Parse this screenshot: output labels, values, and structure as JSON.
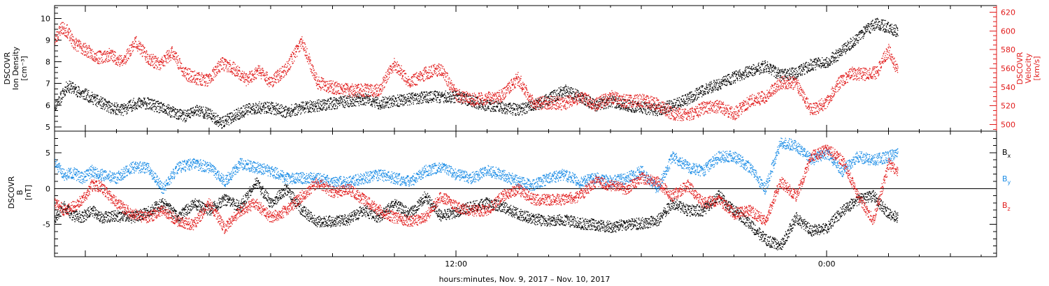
{
  "colors": {
    "black": "#000000",
    "red": "#e11a1a",
    "blue": "#1a8ce6"
  },
  "xlabel": "hours:minutes, Nov.  9, 2017 – Nov. 10, 2017",
  "chart_data": [
    {
      "type": "scatter",
      "panel": "top",
      "ylabel_left": [
        "DSCOVR",
        "Ion Density",
        "[cm⁻³]"
      ],
      "ylabel_right": [
        "DSCOVR",
        "Velocity",
        "[km/s]"
      ],
      "xlim_hours": [
        -1.0,
        29.5
      ],
      "x_ticks": [
        {
          "h": 12,
          "label": "12:00"
        },
        {
          "h": 24,
          "label": "0:00"
        }
      ],
      "ylim_left": [
        4.8,
        10.6
      ],
      "yticks_left": [
        5,
        6,
        7,
        8,
        9,
        10
      ],
      "ylim_right": [
        493,
        627
      ],
      "yticks_right": [
        500,
        520,
        540,
        560,
        580,
        600,
        620
      ],
      "series": [
        {
          "name": "Ion Density",
          "axis": "left",
          "color": "#000000",
          "x_hours": [
            -1.0,
            -0.8,
            -0.6,
            -0.4,
            -0.2,
            0.0,
            0.4,
            0.8,
            1.2,
            1.6,
            2.0,
            2.4,
            2.8,
            3.2,
            3.6,
            4.0,
            4.4,
            4.8,
            5.2,
            5.6,
            6.0,
            6.5,
            7.0,
            7.5,
            8.0,
            8.5,
            9.0,
            9.5,
            10.0,
            10.5,
            11.0,
            11.5,
            12.0,
            12.5,
            13.0,
            13.5,
            14.0,
            14.5,
            15.0,
            15.5,
            16.0,
            16.5,
            17.0,
            17.5,
            18.0,
            18.5,
            19.0,
            19.5,
            20.0,
            20.5,
            21.0,
            21.5,
            22.0,
            22.5,
            23.0,
            23.5,
            24.0,
            24.4,
            24.8,
            25.2,
            25.6,
            26.0,
            26.3
          ],
          "values": [
            6.0,
            6.4,
            6.9,
            6.8,
            6.6,
            6.5,
            6.2,
            5.9,
            5.8,
            6.1,
            6.1,
            5.9,
            5.7,
            5.5,
            5.8,
            5.6,
            5.2,
            5.5,
            5.8,
            5.9,
            5.9,
            5.7,
            5.9,
            6.0,
            6.1,
            6.2,
            6.3,
            6.1,
            6.2,
            6.3,
            6.4,
            6.4,
            6.4,
            6.2,
            6.0,
            5.9,
            5.8,
            6.0,
            6.3,
            6.7,
            6.4,
            6.0,
            6.2,
            6.0,
            5.9,
            5.8,
            6.0,
            6.3,
            6.7,
            7.0,
            7.3,
            7.6,
            7.8,
            7.4,
            7.5,
            7.9,
            8.0,
            8.4,
            8.9,
            9.4,
            9.8,
            9.6,
            9.4
          ]
        },
        {
          "name": "Velocity",
          "axis": "right",
          "color": "#e11a1a",
          "x_hours": [
            -1.0,
            -0.8,
            -0.6,
            -0.4,
            -0.2,
            0.0,
            0.4,
            0.8,
            1.2,
            1.6,
            2.0,
            2.4,
            2.8,
            3.2,
            3.6,
            4.0,
            4.4,
            4.8,
            5.2,
            5.6,
            6.0,
            6.5,
            7.0,
            7.5,
            8.0,
            8.5,
            9.0,
            9.5,
            10.0,
            10.5,
            11.0,
            11.5,
            12.0,
            12.5,
            13.0,
            13.5,
            14.0,
            14.5,
            15.0,
            15.5,
            16.0,
            16.5,
            17.0,
            17.5,
            18.0,
            18.5,
            19.0,
            19.5,
            20.0,
            20.5,
            21.0,
            21.5,
            22.0,
            22.5,
            23.0,
            23.5,
            24.0,
            24.4,
            24.8,
            25.2,
            25.6,
            26.0,
            26.3
          ],
          "values": [
            590,
            604,
            600,
            588,
            584,
            580,
            572,
            575,
            567,
            589,
            572,
            564,
            578,
            555,
            550,
            548,
            566,
            560,
            548,
            558,
            546,
            560,
            590,
            545,
            540,
            537,
            537,
            537,
            565,
            545,
            555,
            560,
            532,
            527,
            528,
            532,
            550,
            523,
            524,
            523,
            530,
            522,
            530,
            525,
            526,
            522,
            512,
            510,
            518,
            520,
            512,
            525,
            530,
            545,
            545,
            515,
            525,
            545,
            555,
            554,
            556,
            580,
            556
          ]
        }
      ]
    },
    {
      "type": "scatter",
      "panel": "bottom",
      "ylabel_left": [
        "DSCOVR",
        "B",
        "[nT]"
      ],
      "xlim_hours": [
        -1.0,
        29.5
      ],
      "x_ticks": [
        {
          "h": 12,
          "label": "12:00"
        },
        {
          "h": 24,
          "label": "0:00"
        }
      ],
      "ylim": [
        -9.5,
        8.0
      ],
      "yticks": [
        -5,
        0,
        5
      ],
      "zero_line": true,
      "legend": [
        {
          "text": "B",
          "sub": "x",
          "color": "#000000"
        },
        {
          "text": "B",
          "sub": "y",
          "color": "#1a8ce6"
        },
        {
          "text": "B",
          "sub": "z",
          "color": "#e11a1a"
        }
      ],
      "series": [
        {
          "name": "Bx",
          "color": "#000000",
          "x_hours": [
            -1.0,
            -0.7,
            -0.4,
            -0.1,
            0.2,
            0.5,
            1.0,
            1.5,
            2.0,
            2.5,
            3.0,
            3.5,
            4.0,
            4.5,
            5.0,
            5.5,
            6.0,
            6.5,
            7.0,
            7.5,
            8.0,
            8.5,
            9.0,
            9.5,
            10.0,
            10.5,
            11.0,
            11.5,
            12.0,
            12.5,
            13.0,
            13.5,
            14.0,
            14.5,
            15.0,
            15.5,
            16.0,
            16.5,
            17.0,
            17.5,
            18.0,
            18.5,
            19.0,
            19.5,
            20.0,
            20.5,
            21.0,
            21.5,
            22.0,
            22.5,
            23.0,
            23.5,
            24.0,
            24.5,
            25.0,
            25.5,
            26.0,
            26.3
          ],
          "values": [
            -4.0,
            -2.5,
            -3.8,
            -3.9,
            -3.0,
            -4.0,
            -3.8,
            -4.0,
            -3.2,
            -2.0,
            -4.0,
            -2.0,
            -3.0,
            -1.5,
            -2.5,
            1.0,
            -2.0,
            0.0,
            -3.0,
            -4.5,
            -4.5,
            -4.3,
            -3.0,
            -4.0,
            -2.0,
            -3.5,
            -1.0,
            -3.8,
            -3.2,
            -2.5,
            -2.0,
            -2.5,
            -3.5,
            -4.2,
            -4.5,
            -4.3,
            -4.8,
            -5.0,
            -5.3,
            -5.0,
            -4.8,
            -4.5,
            -2.0,
            -3.0,
            -3.0,
            -1.0,
            -3.0,
            -5.0,
            -7.0,
            -8.0,
            -4.0,
            -5.8,
            -5.5,
            -3.0,
            -1.5,
            -1.0,
            -3.5,
            -4.0
          ]
        },
        {
          "name": "By",
          "color": "#1a8ce6",
          "x_hours": [
            -1.0,
            -0.7,
            -0.4,
            -0.1,
            0.2,
            0.5,
            1.0,
            1.5,
            2.0,
            2.5,
            3.0,
            3.5,
            4.0,
            4.5,
            5.0,
            5.5,
            6.0,
            6.5,
            7.0,
            7.5,
            8.0,
            8.5,
            9.0,
            9.5,
            10.0,
            10.5,
            11.0,
            11.5,
            12.0,
            12.5,
            13.0,
            13.5,
            14.0,
            14.5,
            15.0,
            15.5,
            16.0,
            16.5,
            17.0,
            17.5,
            18.0,
            18.5,
            19.0,
            19.5,
            20.0,
            20.5,
            21.0,
            21.5,
            22.0,
            22.5,
            23.0,
            23.5,
            24.0,
            24.5,
            25.0,
            25.5,
            26.0,
            26.3
          ],
          "values": [
            3.5,
            2.0,
            2.2,
            1.5,
            2.5,
            2.0,
            1.5,
            3.0,
            3.0,
            0.0,
            3.0,
            3.5,
            3.0,
            1.0,
            3.5,
            3.0,
            2.5,
            1.5,
            1.5,
            1.5,
            1.0,
            1.0,
            1.5,
            2.0,
            1.5,
            1.0,
            2.5,
            3.0,
            2.0,
            1.5,
            2.5,
            2.0,
            1.0,
            0.5,
            1.5,
            2.0,
            1.0,
            1.5,
            1.0,
            1.5,
            2.5,
            0.0,
            4.5,
            3.0,
            2.5,
            4.5,
            4.5,
            3.0,
            0.0,
            6.5,
            6.0,
            4.0,
            5.0,
            2.5,
            4.5,
            4.0,
            4.5,
            5.0
          ]
        },
        {
          "name": "Bz",
          "color": "#e11a1a",
          "x_hours": [
            -1.0,
            -0.7,
            -0.4,
            -0.1,
            0.2,
            0.5,
            1.0,
            1.5,
            2.0,
            2.5,
            3.0,
            3.5,
            4.0,
            4.5,
            5.0,
            5.5,
            6.0,
            6.5,
            7.0,
            7.5,
            8.0,
            8.5,
            9.0,
            9.5,
            10.0,
            10.5,
            11.0,
            11.5,
            12.0,
            12.5,
            13.0,
            13.5,
            14.0,
            14.5,
            15.0,
            15.5,
            16.0,
            16.5,
            17.0,
            17.5,
            18.0,
            18.5,
            19.0,
            19.5,
            20.0,
            20.5,
            21.0,
            21.5,
            22.0,
            22.5,
            23.0,
            23.5,
            24.0,
            24.5,
            25.0,
            25.5,
            26.0,
            26.3
          ],
          "values": [
            -2.0,
            -3.0,
            -2.5,
            -1.5,
            0.5,
            0.3,
            -2.0,
            -3.5,
            -4.0,
            -3.0,
            -4.5,
            -5.0,
            -2.0,
            -5.5,
            -3.0,
            -2.0,
            -4.0,
            -3.0,
            -1.0,
            1.0,
            -0.5,
            0.0,
            -1.5,
            -3.0,
            -4.0,
            -4.5,
            -4.0,
            -1.0,
            -2.5,
            -3.0,
            -3.0,
            -1.0,
            0.0,
            -1.5,
            -1.5,
            -1.5,
            -1.0,
            1.0,
            0.5,
            0.0,
            1.5,
            1.0,
            -1.0,
            0.5,
            -2.0,
            -1.5,
            -3.5,
            -3.0,
            -4.5,
            1.0,
            -1.0,
            4.5,
            5.5,
            4.0,
            -1.0,
            -4.5,
            3.5,
            2.5
          ]
        }
      ]
    }
  ]
}
